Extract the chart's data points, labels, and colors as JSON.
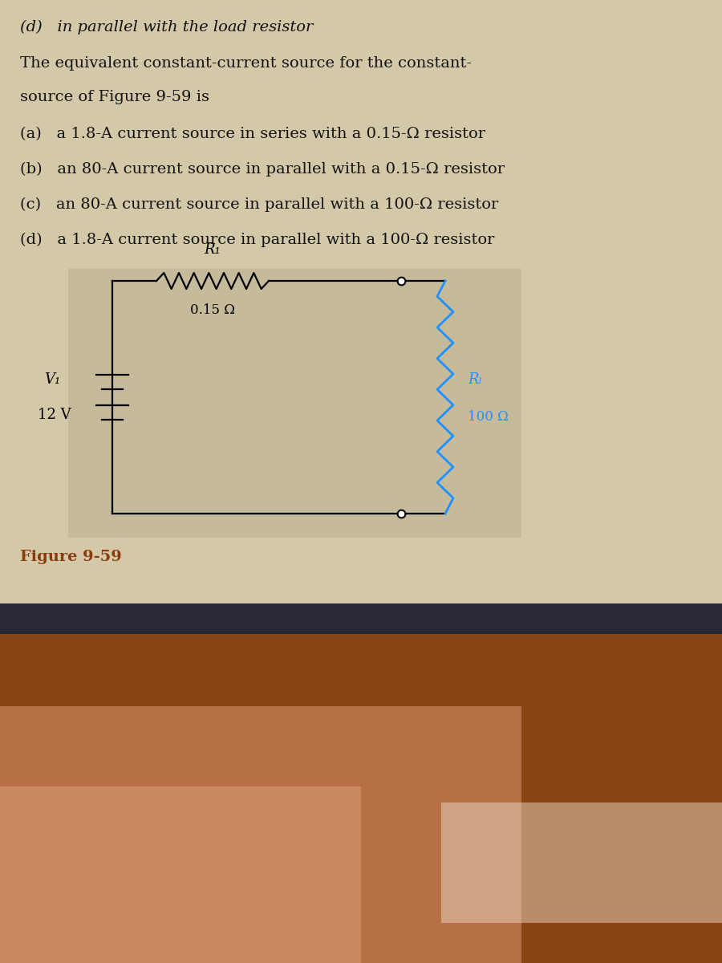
{
  "header_text": "(d)   in parallel with the load resistor",
  "question_line1": "The equivalent constant-current source for the constant-",
  "question_line2": "source of Figure 9-59 is",
  "options": [
    "(a)   a 1.8-A current source in series with a 0.15-Ω resistor",
    "(b)   an 80-A current source in parallel with a 0.15-Ω resistor",
    "(c)   an 80-A current source in parallel with a 100-Ω resistor",
    "(d)   a 1.8-A current source in parallel with a 100-Ω resistor"
  ],
  "figure_label": "Figure 9-59",
  "figure_label_color": "#8B3A10",
  "bg_color": "#D3C9A8",
  "circuit_bg": "#C5BB9A",
  "text_color": "#111111",
  "R1_label": "R₁",
  "R1_value": "0.15 Ω",
  "RL_label": "Rₗ",
  "RL_value": "100 Ω",
  "V1_label": "V₁",
  "V1_value": "12 V",
  "rl_color": "#1E90FF",
  "wire_color": "#000000",
  "hand_color1": "#8B4513",
  "hand_color2": "#C07850",
  "hand_color3": "#D4956A",
  "desk_color": "#2A2835"
}
